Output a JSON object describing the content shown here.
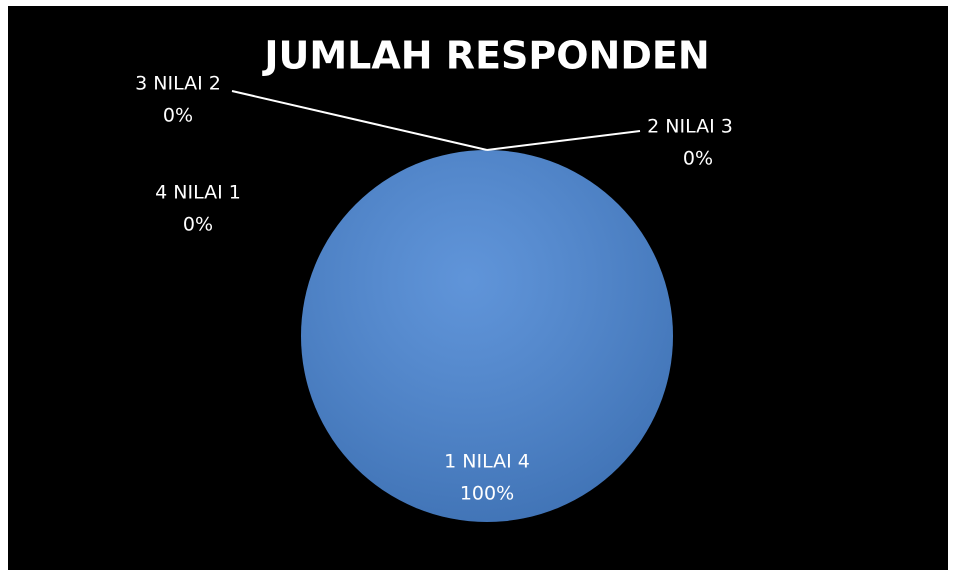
{
  "chart_data": {
    "type": "pie",
    "title": "JUMLAH RESPONDEN",
    "categories": [
      "1 NILAI 4",
      "2 NILAI 3",
      "3 NILAI 2",
      "4 NILAI 1"
    ],
    "values": [
      100,
      0,
      0,
      0
    ],
    "value_labels": [
      "100%",
      "0%",
      "0%",
      "0%"
    ],
    "colors": [
      "#4a86d4",
      "#c0504d",
      "#9bbb59",
      "#8064a2"
    ]
  }
}
